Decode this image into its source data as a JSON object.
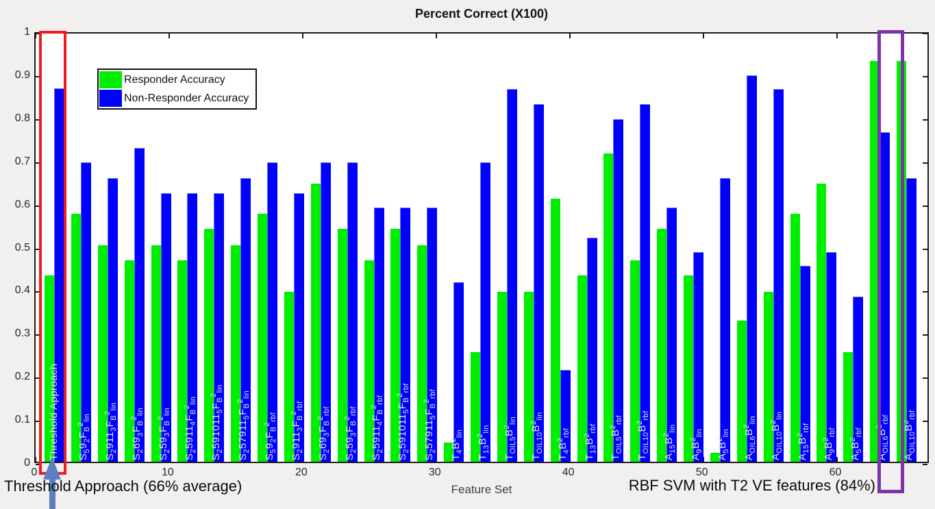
{
  "title": "Percent Correct (X100)",
  "xlabel": "Feature Set",
  "annotations": {
    "threshold": "Threshold Approach (66% average)",
    "rbf": "RBF SVM with T2 VE features (84%)"
  },
  "colors": {
    "responder": "#00ee00",
    "nonresponder": "#0000ff",
    "red_box": "#ed1c24",
    "purple_box": "#7b35a8",
    "arrow": "#5b7fc0",
    "background": "#f1f0ee"
  },
  "chart_data": {
    "type": "bar",
    "title": "Percent Correct (X100)",
    "xlabel": "Feature Set",
    "ylabel": "",
    "ylim": [
      0,
      1
    ],
    "grid": false,
    "legend_position": "top-left",
    "ytick_labels": [
      "0",
      "0.1",
      "0.2",
      "0.3",
      "0.4",
      "0.5",
      "0.6",
      "0.7",
      "0.8",
      "0.9",
      "1"
    ],
    "yticks": [
      0,
      0.1,
      0.2,
      0.3,
      0.4,
      0.5,
      0.6,
      0.7,
      0.8,
      0.9,
      1
    ],
    "xticks": [
      0,
      10,
      20,
      30,
      40,
      50,
      60
    ],
    "categories": [
      "Threshold Approach",
      "S_59_2F_B^2_{lin}",
      "S_2911_3F_B^2_{lin}",
      "S_269_3F_B^2_{lin}",
      "S_259_3F_B^2_{lin}",
      "S_25911_4F_B^2_{lin}",
      "S_2591011_5F_B^2_{lin}",
      "S_257911_5F_B^2_{lin}",
      "S_59_2F_B^2_{rbf}",
      "S_2911_3F_B^2_{rbf}",
      "S_269_3F_B^2_{rbf}",
      "S_259_3F_B^2_{rbf}",
      "S_25911_4F_B^2_{rbf}",
      "S_2591011_5F_B^2_{rbf}",
      "S_257911_5F_B^2_{rbf}",
      "T_4B^2_{lin}",
      "T_{13}B^2_{lin}",
      "T_{OIL5}B^2_{lin}",
      "T_{OIL10}B^2_{lin}",
      "T_4B^2_{rbf}",
      "T_{13}B^2_{rbf}",
      "T_{OIL5}B^2_{rbf}",
      "T_{OIL10}B^2_{rbf}",
      "A_{15}B^2_{lin}",
      "A_9B^2_{lin}",
      "A_5B^2_{lin}",
      "A_{OIL6}B^2_{lin}",
      "A_{OIL10}B^2_{lin}",
      "A_{15}B^2_{rbf}",
      "A_9B^2_{rbf}",
      "A_5B^2_{rbf}",
      "A_{OIL6}B^2_{rbf}",
      "A_{OIL10}B^2_{rbf}"
    ],
    "series": [
      {
        "name": "Responder Accuracy",
        "color": "#00ee00",
        "values": [
          0.432,
          0.575,
          0.503,
          0.467,
          0.503,
          0.467,
          0.54,
          0.503,
          0.575,
          0.395,
          0.645,
          0.54,
          0.467,
          0.54,
          0.503,
          0.045,
          0.255,
          0.395,
          0.395,
          0.61,
          0.432,
          0.715,
          0.467,
          0.54,
          0.432,
          0.02,
          0.328,
          0.395,
          0.575,
          0.645,
          0.255,
          0.93,
          0.93
        ]
      },
      {
        "name": "Non-Responder Accuracy",
        "color": "#0000ff",
        "values": [
          0.866,
          0.694,
          0.659,
          0.728,
          0.624,
          0.624,
          0.624,
          0.659,
          0.694,
          0.624,
          0.694,
          0.694,
          0.59,
          0.59,
          0.59,
          0.417,
          0.694,
          0.865,
          0.83,
          0.213,
          0.52,
          0.795,
          0.83,
          0.59,
          0.487,
          0.659,
          0.897,
          0.865,
          0.455,
          0.487,
          0.383,
          0.765,
          0.659
        ]
      }
    ]
  }
}
